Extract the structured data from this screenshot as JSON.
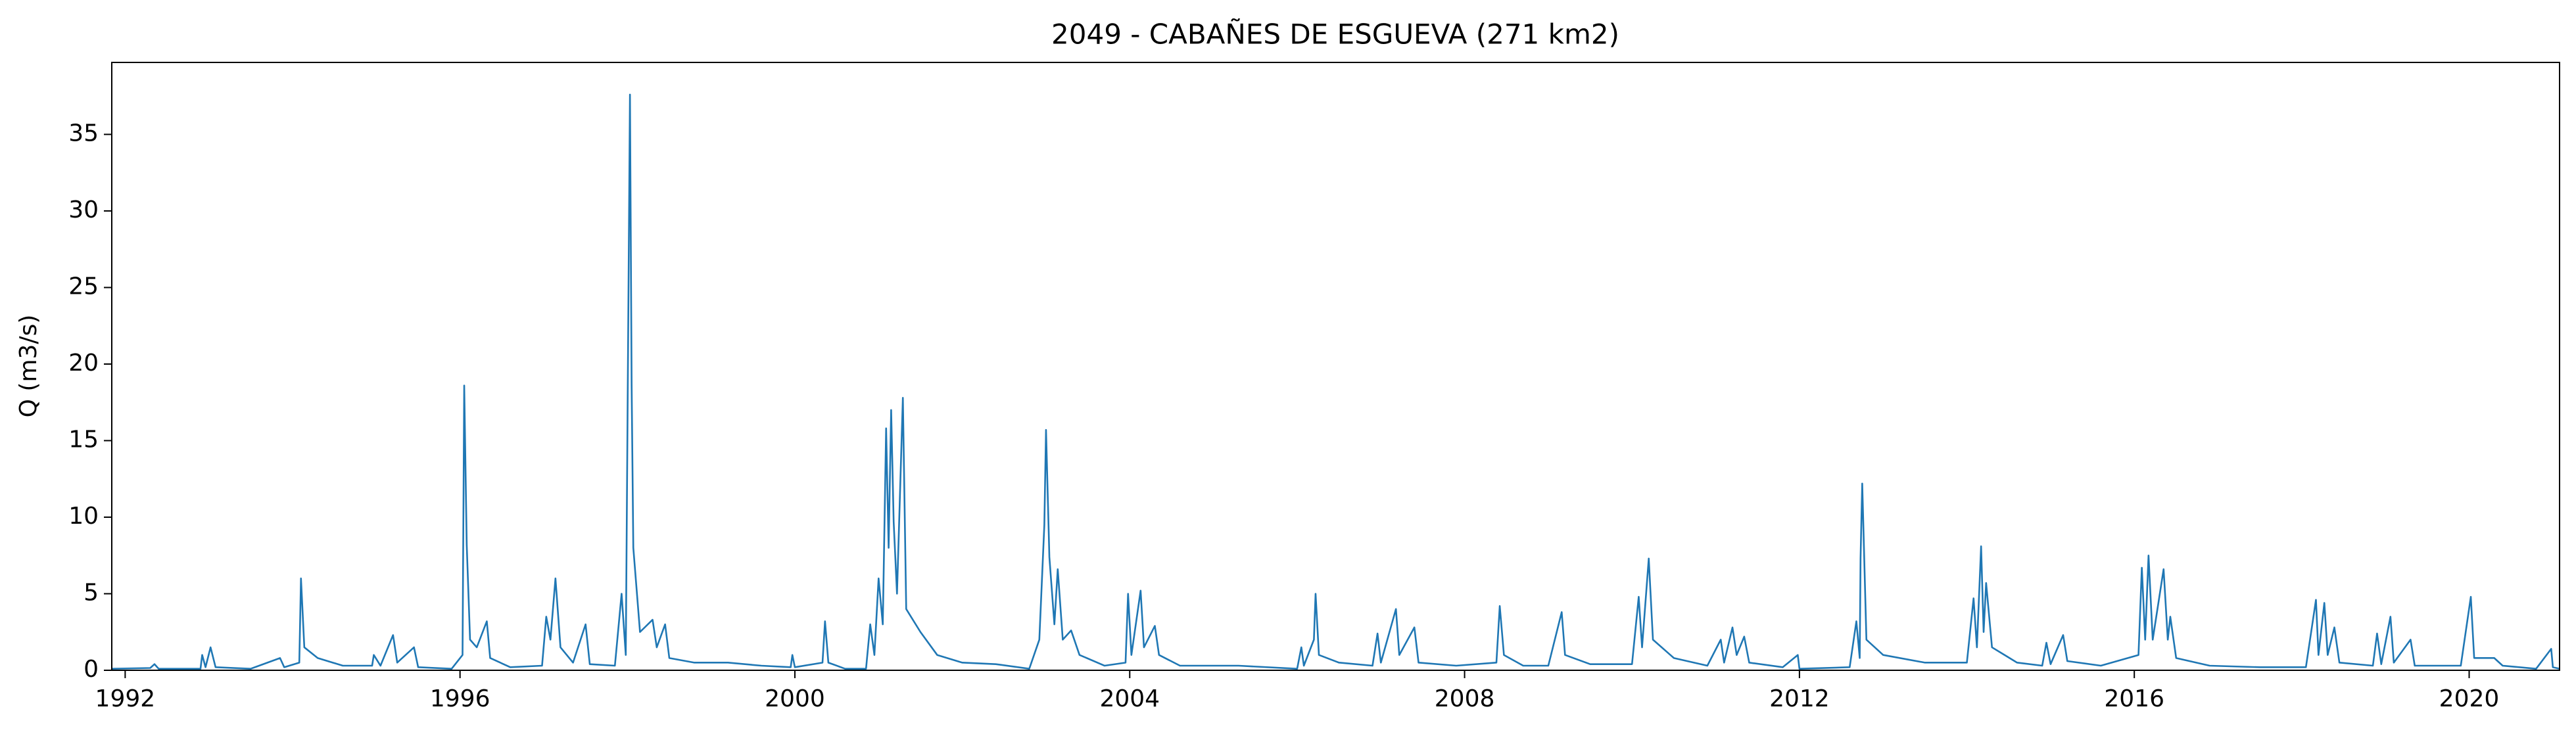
{
  "chart_data": {
    "type": "line",
    "title": "2049 - CABAÑES DE ESGUEVA (271 km2)",
    "y_label": "Q (m3/s)",
    "x": [
      1991.84,
      1992.3,
      1992.35,
      1992.4,
      1992.9,
      1992.92,
      1992.96,
      1993.02,
      1993.08,
      1993.5,
      1993.85,
      1993.9,
      1994.08,
      1994.1,
      1994.14,
      1994.3,
      1994.6,
      1994.95,
      1994.97,
      1995.05,
      1995.2,
      1995.25,
      1995.45,
      1995.5,
      1995.9,
      1996.03,
      1996.05,
      1996.08,
      1996.12,
      1996.2,
      1996.32,
      1996.36,
      1996.6,
      1996.98,
      1997.03,
      1997.08,
      1997.14,
      1997.2,
      1997.35,
      1997.5,
      1997.55,
      1997.85,
      1997.93,
      1997.98,
      1998.03,
      1998.05,
      1998.07,
      1998.15,
      1998.3,
      1998.35,
      1998.45,
      1998.5,
      1998.8,
      1999.2,
      1999.6,
      1999.95,
      1999.97,
      2000.0,
      2000.33,
      2000.36,
      2000.4,
      2000.6,
      2000.85,
      2000.9,
      2000.95,
      2001.0,
      2001.05,
      2001.09,
      2001.12,
      2001.15,
      2001.18,
      2001.22,
      2001.29,
      2001.33,
      2001.5,
      2001.7,
      2002.0,
      2002.4,
      2002.8,
      2002.92,
      2002.98,
      2003.0,
      2003.04,
      2003.1,
      2003.14,
      2003.2,
      2003.3,
      2003.4,
      2003.7,
      2003.95,
      2003.98,
      2004.02,
      2004.13,
      2004.17,
      2004.3,
      2004.35,
      2004.6,
      2005.3,
      2006.0,
      2006.05,
      2006.08,
      2006.2,
      2006.22,
      2006.26,
      2006.5,
      2006.9,
      2006.96,
      2007.0,
      2007.18,
      2007.22,
      2007.4,
      2007.45,
      2007.9,
      2008.38,
      2008.42,
      2008.47,
      2008.7,
      2009.0,
      2009.16,
      2009.2,
      2009.5,
      2010.0,
      2010.08,
      2010.12,
      2010.2,
      2010.25,
      2010.5,
      2010.9,
      2011.06,
      2011.1,
      2011.2,
      2011.25,
      2011.34,
      2011.4,
      2011.8,
      2011.98,
      2012.0,
      2012.6,
      2012.68,
      2012.72,
      2012.73,
      2012.75,
      2012.8,
      2013.0,
      2013.5,
      2014.0,
      2014.08,
      2014.12,
      2014.17,
      2014.2,
      2014.23,
      2014.3,
      2014.6,
      2014.9,
      2014.95,
      2015.0,
      2015.15,
      2015.2,
      2015.6,
      2016.05,
      2016.09,
      2016.13,
      2016.17,
      2016.22,
      2016.35,
      2016.4,
      2016.43,
      2016.5,
      2016.9,
      2017.5,
      2018.05,
      2018.17,
      2018.2,
      2018.27,
      2018.31,
      2018.39,
      2018.45,
      2018.85,
      2018.9,
      2018.95,
      2019.06,
      2019.1,
      2019.3,
      2019.35,
      2019.9,
      2020.02,
      2020.06,
      2020.3,
      2020.4,
      2020.8,
      2020.98,
      2021.0,
      2021.08
    ],
    "series": [
      {
        "name": "Q",
        "color": "#1f77b4",
        "values": [
          0.1,
          0.15,
          0.4,
          0.1,
          0.1,
          1.0,
          0.2,
          1.5,
          0.2,
          0.1,
          0.8,
          0.2,
          0.5,
          6.0,
          1.5,
          0.8,
          0.3,
          0.3,
          1.0,
          0.3,
          2.3,
          0.5,
          1.5,
          0.2,
          0.1,
          1.0,
          18.6,
          8.2,
          2.0,
          1.5,
          3.2,
          0.8,
          0.2,
          0.3,
          3.5,
          2.0,
          6.0,
          1.5,
          0.5,
          3.0,
          0.4,
          0.3,
          5.0,
          1.0,
          37.6,
          18.6,
          8.0,
          2.5,
          3.3,
          1.5,
          3.0,
          0.8,
          0.5,
          0.5,
          0.3,
          0.2,
          1.0,
          0.2,
          0.5,
          3.2,
          0.5,
          0.1,
          0.1,
          3.0,
          1.0,
          6.0,
          3.0,
          15.8,
          8.0,
          17.0,
          9.7,
          5.0,
          17.8,
          4.0,
          2.5,
          1.0,
          0.5,
          0.4,
          0.1,
          2.0,
          9.5,
          15.7,
          7.4,
          3.0,
          6.6,
          2.0,
          2.6,
          1.0,
          0.3,
          0.5,
          5.0,
          1.0,
          5.2,
          1.5,
          2.9,
          1.0,
          0.3,
          0.3,
          0.1,
          1.5,
          0.3,
          2.0,
          5.0,
          1.0,
          0.5,
          0.3,
          2.4,
          0.5,
          4.0,
          1.0,
          2.8,
          0.5,
          0.3,
          0.5,
          4.2,
          1.0,
          0.3,
          0.3,
          3.8,
          1.0,
          0.4,
          0.4,
          4.8,
          1.5,
          7.3,
          2.0,
          0.8,
          0.3,
          2.0,
          0.5,
          2.8,
          1.0,
          2.2,
          0.5,
          0.2,
          1.0,
          0.1,
          0.2,
          3.2,
          0.8,
          7.3,
          12.2,
          2.0,
          1.0,
          0.5,
          0.5,
          4.7,
          1.5,
          8.1,
          2.5,
          5.7,
          1.5,
          0.5,
          0.3,
          1.8,
          0.4,
          2.3,
          0.6,
          0.3,
          1.0,
          6.7,
          2.0,
          7.5,
          2.0,
          6.6,
          2.0,
          3.5,
          0.8,
          0.3,
          0.2,
          0.2,
          4.6,
          1.0,
          4.4,
          1.0,
          2.8,
          0.5,
          0.3,
          2.4,
          0.4,
          3.5,
          0.5,
          2.0,
          0.3,
          0.3,
          4.8,
          0.8,
          0.8,
          0.3,
          0.1,
          1.4,
          0.2,
          0.1
        ]
      }
    ],
    "xlim": [
      1991.84,
      2021.08
    ],
    "xticks": [
      1992,
      1996,
      2000,
      2004,
      2008,
      2012,
      2016,
      2020
    ],
    "ylim": [
      0,
      39.7
    ],
    "yticks": [
      0,
      5,
      10,
      15,
      20,
      25,
      30,
      35
    ]
  }
}
